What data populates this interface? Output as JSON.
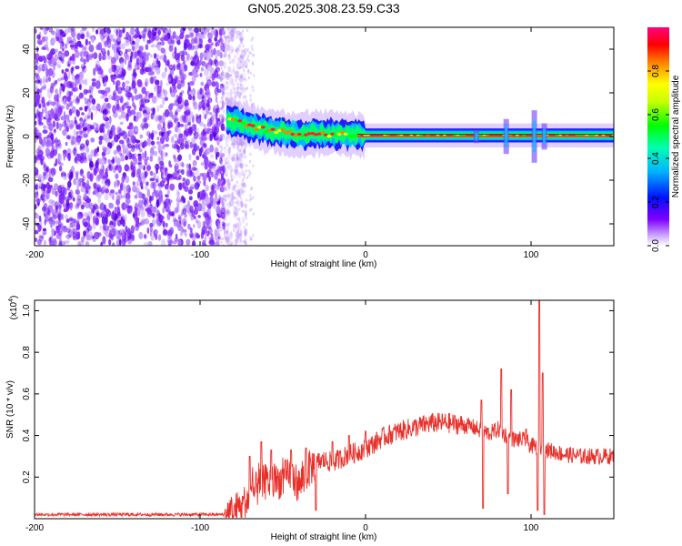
{
  "title": "GN05.2025.308.23.59.C33",
  "colorbar": {
    "label": "Normalized spectral amplitude",
    "ticks": [
      "0.0",
      "0.2",
      "0.4",
      "0.6",
      "0.8"
    ],
    "tick_values": [
      0.0,
      0.2,
      0.4,
      0.6,
      0.8
    ],
    "range": [
      0,
      1
    ],
    "colormap": [
      "#ffffff",
      "#8000ff",
      "#0000ff",
      "#00c8ff",
      "#00ff00",
      "#ffff00",
      "#ff8000",
      "#ff0000",
      "#ff0080"
    ]
  },
  "chart_data": [
    {
      "type": "heatmap",
      "title": "GN05.2025.308.23.59.C33",
      "xlabel": "Height of straight line (km)",
      "ylabel": "Frequency (Hz)",
      "xlim": [
        -200,
        150
      ],
      "ylim": [
        -50,
        50
      ],
      "xticks": [
        -200,
        -100,
        0,
        100
      ],
      "xtick_labels": [
        "-200",
        "-100",
        "0",
        "100"
      ],
      "yticks": [
        -40,
        -20,
        0,
        20,
        40
      ],
      "ytick_labels": [
        "-40",
        "-20",
        "0",
        "20",
        "40"
      ],
      "noise_region_x": [
        -200,
        -80
      ],
      "ridge": {
        "x": [
          -84,
          -70,
          -60,
          -50,
          -40,
          -30,
          -20,
          -10,
          0,
          20,
          50,
          80,
          100,
          110,
          150
        ],
        "freq_hz": [
          8,
          5,
          3,
          2,
          1,
          1.5,
          1,
          1,
          0.5,
          0.5,
          0.5,
          0.5,
          0.5,
          0.5,
          0.5
        ]
      },
      "streaks": [
        {
          "x": 67,
          "spread_hz": 3
        },
        {
          "x": 85,
          "spread_hz": 8
        },
        {
          "x": 102,
          "spread_hz": 12
        },
        {
          "x": 108,
          "spread_hz": 6
        }
      ]
    },
    {
      "type": "line",
      "xlabel": "Height of straight line (km)",
      "ylabel": "SNR (10 * v/v)",
      "multiplier_base": "(x10",
      "multiplier_exp": "4",
      "multiplier_close": ")",
      "xlim": [
        -200,
        150
      ],
      "ylim": [
        0,
        1.05
      ],
      "xticks": [
        -200,
        -100,
        0,
        100
      ],
      "xtick_labels": [
        "-200",
        "-100",
        "0",
        "100"
      ],
      "yticks": [
        0.2,
        0.4,
        0.6,
        0.8,
        1.0
      ],
      "ytick_labels": [
        "0.2",
        "0.4",
        "0.6",
        "0.8",
        "1.0"
      ],
      "color": "#e8302a",
      "series": [
        {
          "name": "SNR",
          "x": [
            -200,
            -150,
            -100,
            -85,
            -80,
            -75,
            -70,
            -65,
            -60,
            -55,
            -50,
            -45,
            -40,
            -35,
            -30,
            -25,
            -20,
            -15,
            -10,
            -5,
            0,
            5,
            10,
            20,
            30,
            40,
            50,
            60,
            65,
            70,
            75,
            80,
            85,
            90,
            95,
            100,
            105,
            110,
            120,
            130,
            140,
            150
          ],
          "y": [
            0.02,
            0.02,
            0.02,
            0.02,
            0.03,
            0.06,
            0.1,
            0.15,
            0.18,
            0.17,
            0.19,
            0.21,
            0.16,
            0.23,
            0.27,
            0.28,
            0.27,
            0.29,
            0.31,
            0.32,
            0.34,
            0.36,
            0.39,
            0.42,
            0.44,
            0.46,
            0.46,
            0.45,
            0.44,
            0.42,
            0.41,
            0.43,
            0.4,
            0.38,
            0.38,
            0.35,
            0.34,
            0.33,
            0.31,
            0.3,
            0.3,
            0.3
          ],
          "spikes": [
            {
              "x": -70,
              "y": 0.3
            },
            {
              "x": -63,
              "y": 0.37
            },
            {
              "x": -57,
              "y": 0.33
            },
            {
              "x": -45,
              "y": 0.33
            },
            {
              "x": -36,
              "y": 0.34
            },
            {
              "x": -30,
              "y": 0.04
            },
            {
              "x": -20,
              "y": 0.37
            },
            {
              "x": -10,
              "y": 0.4
            },
            {
              "x": 0,
              "y": 0.42
            },
            {
              "x": 70,
              "y": 0.57
            },
            {
              "x": 71,
              "y": 0.05
            },
            {
              "x": 82,
              "y": 0.72
            },
            {
              "x": 86,
              "y": 0.12
            },
            {
              "x": 88,
              "y": 0.62
            },
            {
              "x": 97,
              "y": 0.43
            },
            {
              "x": 104,
              "y": 0.04
            },
            {
              "x": 105,
              "y": 1.05
            },
            {
              "x": 107,
              "y": 0.7
            },
            {
              "x": 108,
              "y": 0.02
            }
          ]
        }
      ]
    }
  ]
}
